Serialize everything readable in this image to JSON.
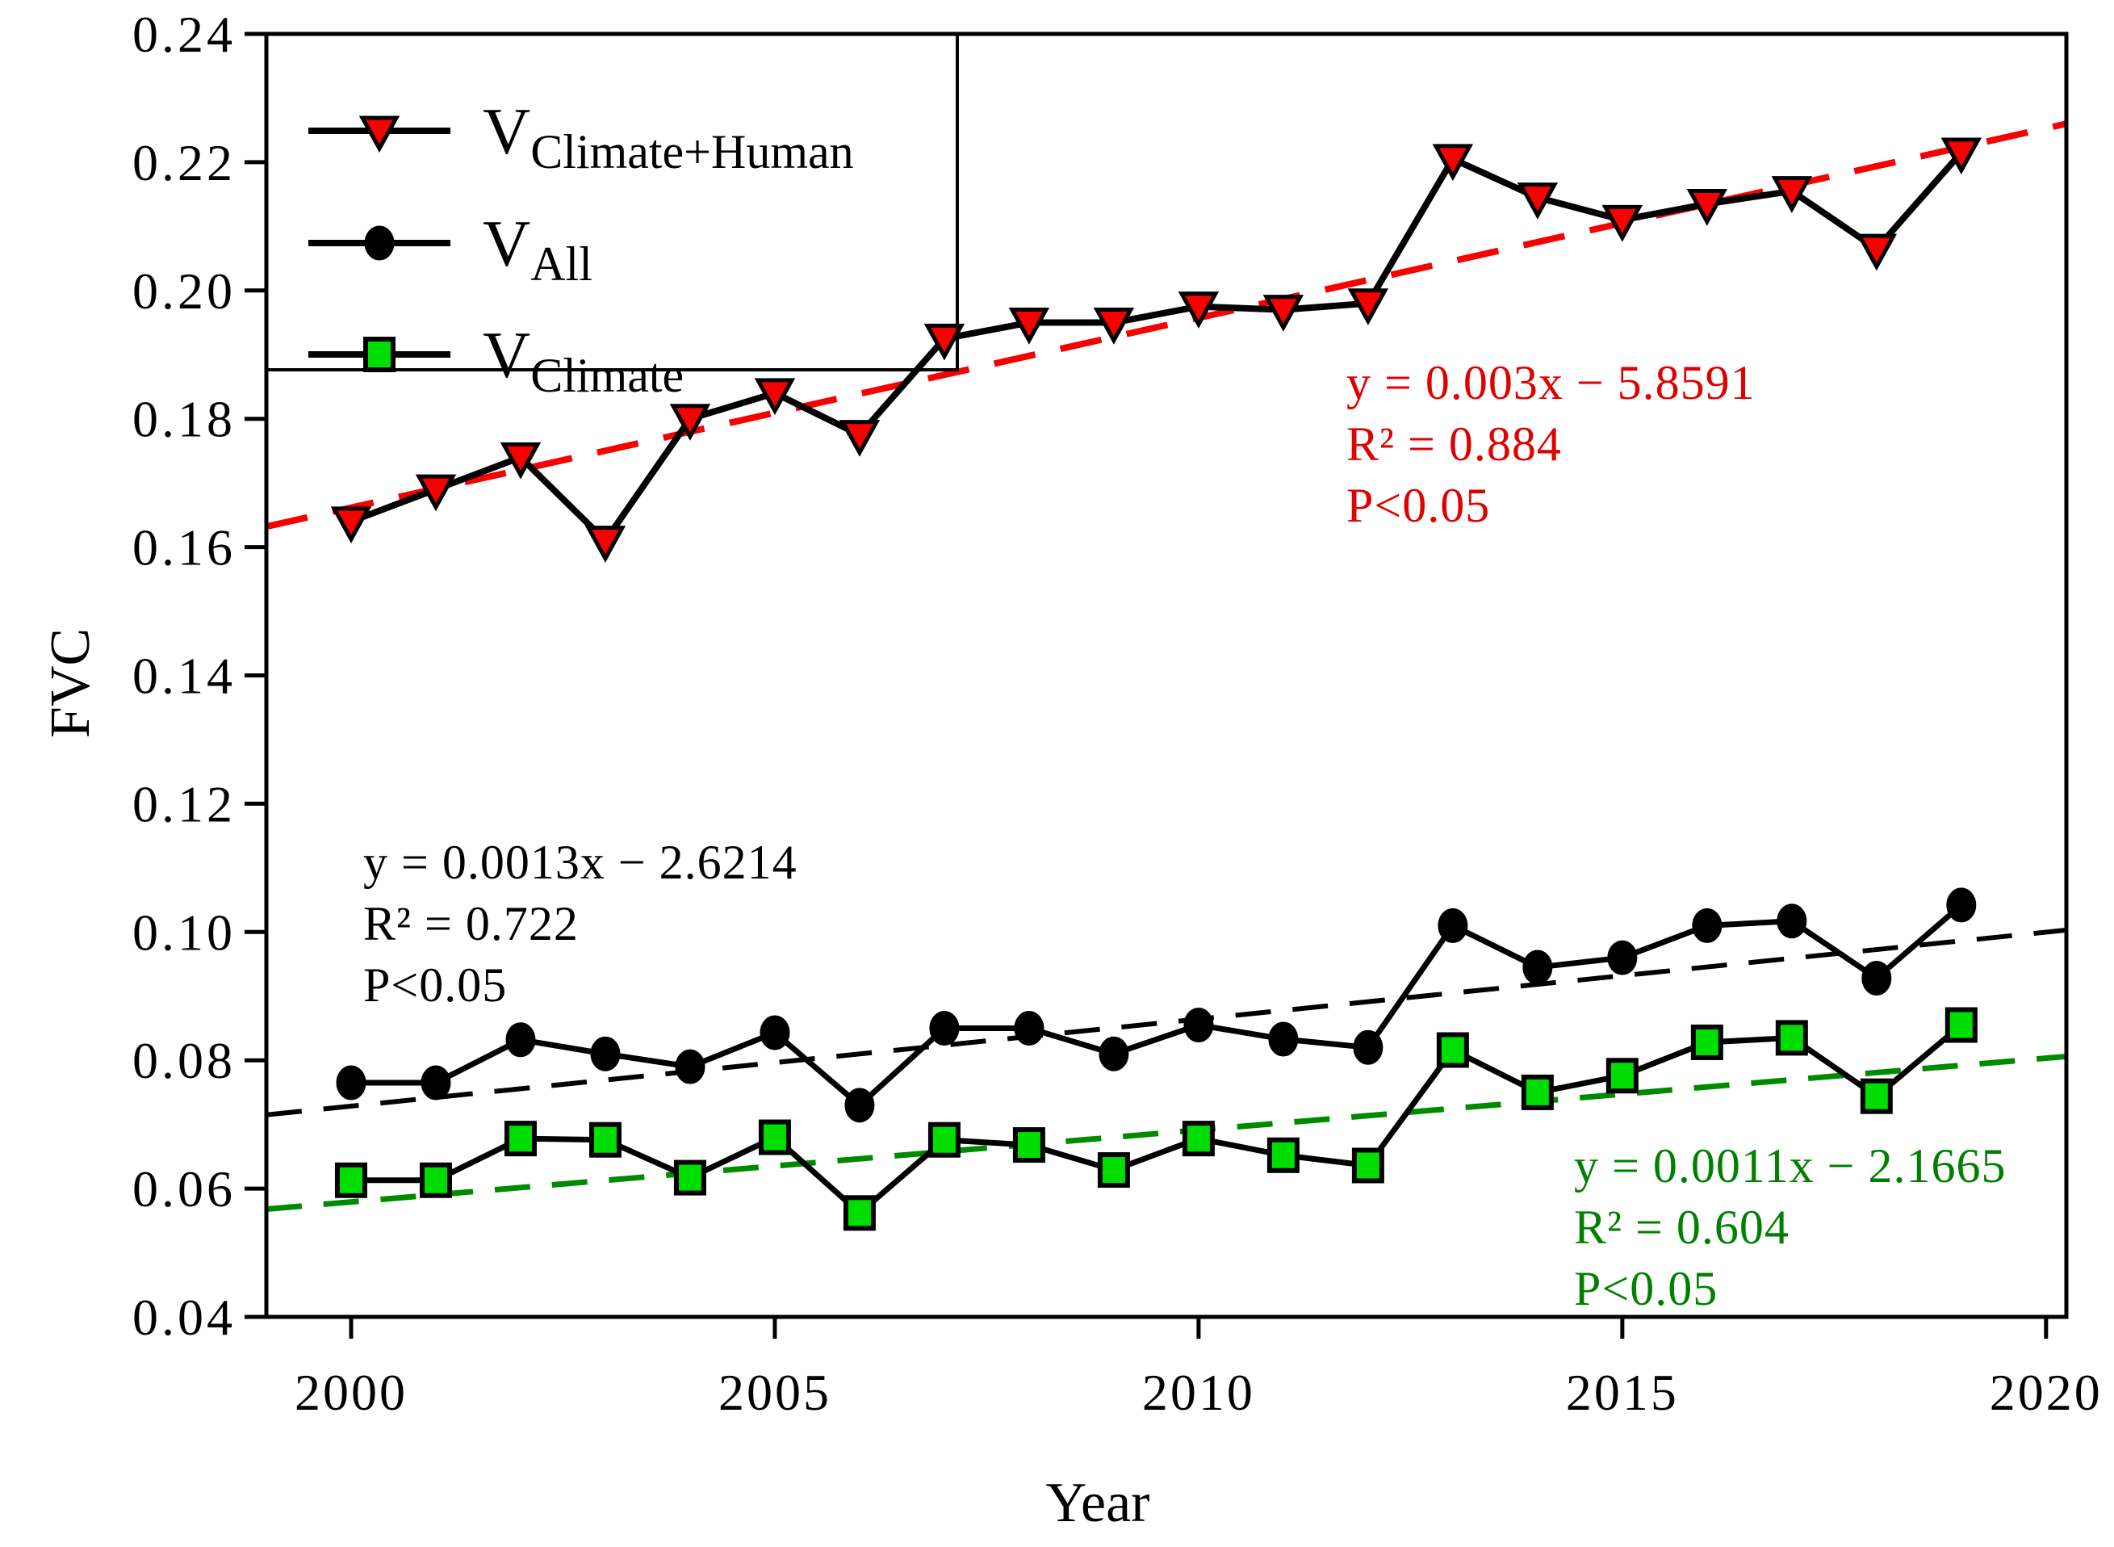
{
  "axes": {
    "y_label": "FVC",
    "x_label": "Year"
  },
  "legend": {
    "items": [
      {
        "label_main": "V",
        "label_sub": "Climate+Human",
        "marker": "triangle-down-icon",
        "marker_fill": "#f80000"
      },
      {
        "label_main": "V",
        "label_sub": "All",
        "marker": "circle-icon",
        "marker_fill": "#000000"
      },
      {
        "label_main": "V",
        "label_sub": "Climate",
        "marker": "square-icon",
        "marker_fill": "#00dd00"
      }
    ]
  },
  "equations": [
    {
      "series": "V_Climate+Human",
      "color": "#e00000",
      "lines": [
        "y = 0.003x − 5.8591",
        "R² = 0.884",
        "P<0.05"
      ]
    },
    {
      "series": "V_All",
      "color": "#000000",
      "lines": [
        "y = 0.0013x − 2.6214",
        "R² = 0.722",
        "P<0.05"
      ]
    },
    {
      "series": "V_Climate",
      "color": "#008000",
      "lines": [
        "y = 0.0011x − 2.1665",
        "R² = 0.604",
        "P<0.05"
      ]
    }
  ],
  "chart_data": {
    "type": "line",
    "title": "",
    "xlabel": "Year",
    "ylabel": "FVC",
    "xlim": [
      1999.0,
      2020.24
    ],
    "ylim": [
      0.04,
      0.24
    ],
    "grid": false,
    "legend_position": "top-left",
    "x_ticks": [
      2000,
      2005,
      2010,
      2015,
      2020
    ],
    "x_tick_labels": [
      "2000",
      "2005",
      "2010",
      "2015",
      "2020"
    ],
    "y_ticks": [
      0.24,
      0.22,
      0.2,
      0.18,
      0.16,
      0.14,
      0.12,
      0.1,
      0.08,
      0.06,
      0.04
    ],
    "y_tick_labels": [
      "0.24",
      "0.22",
      "0.20",
      "0.18",
      "0.16",
      "0.14",
      "0.12",
      "0.10",
      "0.08",
      "0.06",
      "0.04"
    ],
    "x": [
      2000,
      2001,
      2002,
      2003,
      2004,
      2005,
      2006,
      2007,
      2008,
      2009,
      2010,
      2011,
      2012,
      2013,
      2014,
      2015,
      2016,
      2017,
      2018,
      2019
    ],
    "series": [
      {
        "name": "V_Climate+Human",
        "marker": "triangle-down",
        "marker_fill": "#f80000",
        "line_color": "#000000",
        "line_width": 8,
        "values": [
          0.164,
          0.169,
          0.174,
          0.161,
          0.18,
          0.184,
          0.1775,
          0.1925,
          0.195,
          0.195,
          0.1975,
          0.197,
          0.198,
          0.2205,
          0.2145,
          0.211,
          0.2135,
          0.2155,
          0.2065,
          0.2215
        ]
      },
      {
        "name": "V_All",
        "marker": "circle",
        "marker_fill": "#000000",
        "line_color": "#000000",
        "line_width": 7,
        "values": [
          0.0765,
          0.0765,
          0.0832,
          0.081,
          0.079,
          0.0843,
          0.073,
          0.085,
          0.085,
          0.081,
          0.0855,
          0.0833,
          0.082,
          0.101,
          0.0945,
          0.096,
          0.101,
          0.1017,
          0.0928,
          0.1042
        ]
      },
      {
        "name": "V_Climate",
        "marker": "square",
        "marker_fill": "#00dd00",
        "line_color": "#000000",
        "line_width": 7,
        "values": [
          0.0613,
          0.0613,
          0.0678,
          0.0676,
          0.0617,
          0.068,
          0.0562,
          0.0676,
          0.0668,
          0.0629,
          0.0678,
          0.0652,
          0.0636,
          0.0816,
          0.075,
          0.0776,
          0.0828,
          0.0835,
          0.0744,
          0.0855
        ]
      }
    ],
    "trendlines": [
      {
        "series": "V_Climate+Human",
        "color": "#f80000",
        "dash": "52 32",
        "width": 8,
        "equation": "y = 0.003x − 5.8591",
        "r_squared": 0.884,
        "p": "P<0.05",
        "start": [
          1999.0,
          0.1632
        ],
        "end": [
          2020.24,
          0.226
        ]
      },
      {
        "series": "V_All",
        "color": "#000000",
        "dash": "44 27",
        "width": 6,
        "equation": "y = 0.0013x − 2.6214",
        "r_squared": 0.722,
        "p": "P<0.05",
        "start": [
          1999.0,
          0.0715
        ],
        "end": [
          2020.24,
          0.1003
        ]
      },
      {
        "series": "V_Climate",
        "color": "#008a00",
        "dash": "44 27",
        "width": 7,
        "equation": "y = 0.0011x − 2.1665",
        "r_squared": 0.604,
        "p": "P<0.05",
        "start": [
          1999.0,
          0.0568
        ],
        "end": [
          2020.24,
          0.0806
        ]
      }
    ]
  }
}
